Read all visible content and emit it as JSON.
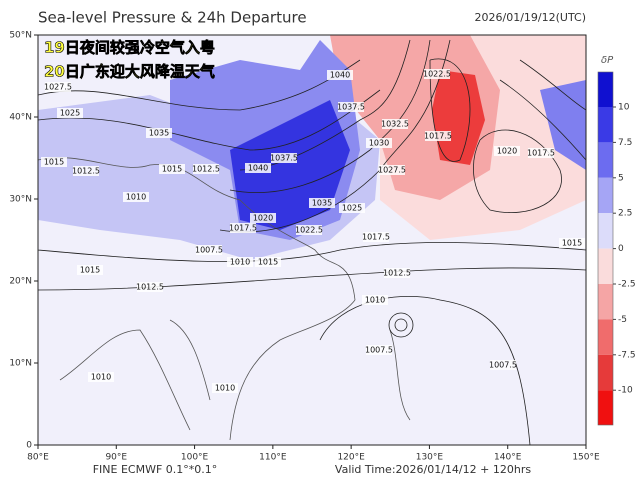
{
  "header": {
    "title": "Sea-level Pressure & 24h Departure",
    "issue_time": "2026/01/19/12(UTC)"
  },
  "overlay": {
    "line1": "19日夜间较强冷空气入粤",
    "line2": "20日广东迎大风降温天气"
  },
  "footer": {
    "model": "FINE ECMWF 0.1°*0.1°",
    "valid": "Valid Time:2026/01/14/12 + 120hrs"
  },
  "x_axis": {
    "labels": [
      "80°E",
      "90°E",
      "100°E",
      "110°E",
      "120°E",
      "130°E",
      "140°E",
      "150°E"
    ]
  },
  "y_axis": {
    "labels": [
      "0",
      "10°N",
      "20°N",
      "30°N",
      "40°N",
      "50°N"
    ]
  },
  "colorbar": {
    "label": "δP",
    "ticks": [
      10,
      7.5,
      5,
      2.5,
      0,
      -2.5,
      -5,
      -7.5,
      -10
    ]
  },
  "contour_labels": [
    "1027.5",
    "1025",
    "1035",
    "1015",
    "1012.5",
    "1015",
    "1012.5",
    "1040",
    "1037.5",
    "1035",
    "1030",
    "1032.5",
    "1040",
    "1037.5",
    "1022.5",
    "1017.5",
    "1020",
    "1017.5",
    "1015",
    "1017.5",
    "1012.5",
    "1010",
    "1007.5",
    "1007.5",
    "1025",
    "1022.5",
    "1020",
    "1017.5",
    "1007.5",
    "1010",
    "1015",
    "1010",
    "1015",
    "1012.5",
    "1010",
    "1010",
    "1027.5"
  ]
}
